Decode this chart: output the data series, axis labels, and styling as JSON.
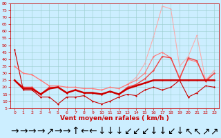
{
  "xlabel": "Vent moyen/en rafales ( km/h )",
  "x": [
    0,
    1,
    2,
    3,
    4,
    5,
    6,
    7,
    8,
    9,
    10,
    11,
    12,
    13,
    14,
    15,
    16,
    17,
    18,
    19,
    20,
    21,
    22,
    23
  ],
  "bg_color": "#cceeff",
  "grid_color": "#99cccc",
  "line_dark1": {
    "y": [
      47,
      18,
      18,
      13,
      13,
      8,
      13,
      13,
      14,
      10,
      8,
      10,
      13,
      15,
      14,
      18,
      20,
      18,
      20,
      25,
      13,
      16,
      21,
      20
    ],
    "color": "#cc0000",
    "lw": 0.8,
    "marker": "D",
    "ms": 1.5
  },
  "line_dark2": {
    "y": [
      25,
      19,
      19,
      15,
      19,
      20,
      16,
      18,
      16,
      16,
      15,
      17,
      15,
      19,
      21,
      23,
      25,
      25,
      25,
      25,
      25,
      25,
      25,
      25
    ],
    "color": "#cc0000",
    "lw": 1.8,
    "marker": "D",
    "ms": 1.5
  },
  "line_med1": {
    "y": [
      35,
      30,
      29,
      25,
      21,
      21,
      20,
      20,
      19,
      19,
      18,
      20,
      19,
      22,
      25,
      30,
      42,
      45,
      41,
      27,
      40,
      38,
      25,
      30
    ],
    "color": "#ff7777",
    "lw": 0.8,
    "marker": "D",
    "ms": 1.5
  },
  "line_med2": {
    "y": [
      25,
      20,
      20,
      15,
      20,
      20,
      16,
      18,
      16,
      16,
      15,
      17,
      15,
      20,
      22,
      26,
      32,
      42,
      41,
      26,
      41,
      39,
      24,
      30
    ],
    "color": "#ee4444",
    "lw": 1.0,
    "marker": "D",
    "ms": 1.5
  },
  "line_light": {
    "y": [
      35,
      30,
      29,
      25,
      21,
      21,
      20,
      20,
      19,
      19,
      18,
      20,
      19,
      22,
      27,
      37,
      56,
      78,
      76,
      35,
      42,
      57,
      25,
      32
    ],
    "color": "#ffaaaa",
    "lw": 0.8,
    "marker": "D",
    "ms": 1.5
  },
  "ylim": [
    5,
    80
  ],
  "yticks": [
    5,
    10,
    15,
    20,
    25,
    30,
    35,
    40,
    45,
    50,
    55,
    60,
    65,
    70,
    75,
    80
  ],
  "xticks": [
    0,
    1,
    2,
    3,
    4,
    5,
    6,
    7,
    8,
    9,
    10,
    11,
    12,
    13,
    14,
    15,
    16,
    17,
    18,
    19,
    20,
    21,
    22,
    23
  ],
  "tick_fontsize": 4.5,
  "label_fontsize": 6.5,
  "arrows": [
    "→",
    "→",
    "→",
    "→",
    "↗",
    "→",
    "→",
    "↑",
    "←",
    "←",
    "↓",
    "↓",
    "↓",
    "↙",
    "↙",
    "↙",
    "↓",
    "↓",
    "↙",
    "↓",
    "↖",
    "↖",
    "↗",
    "↗"
  ]
}
